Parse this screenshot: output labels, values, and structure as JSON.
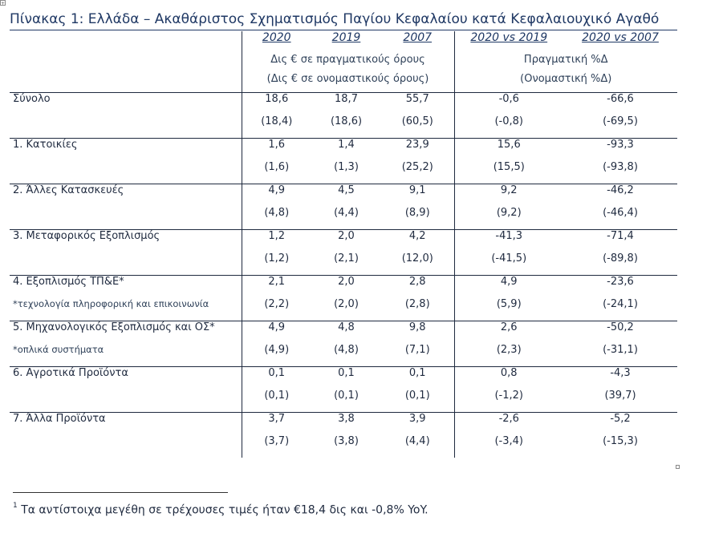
{
  "title": "Πίνακας 1: Ελλάδα – Ακαθάριστος Σχηματισμός Παγίου Κεφαλαίου κατά Κεφαλαιουχικό Αγαθό",
  "header": {
    "years": [
      "2020",
      "2019",
      "2007"
    ],
    "changes": [
      "2020 vs 2019",
      "2020 vs 2007"
    ],
    "units_real": "Δις € σε πραγματικούς όρους",
    "units_nominal": "(Δις € σε ονομαστικούς όρους)",
    "pct_real": "Πραγματική %Δ",
    "pct_nominal": "(Ονομαστική %Δ)"
  },
  "rows": [
    {
      "label": "Σύνολο",
      "note": "",
      "real": [
        "18,6",
        "18,7",
        "55,7",
        "-0,6",
        "-66,6"
      ],
      "nominal": [
        "(18,4)",
        "(18,6)",
        "(60,5)",
        "(-0,8)",
        "(-69,5)"
      ]
    },
    {
      "label": "1. Κατοικίες",
      "note": "",
      "real": [
        "1,6",
        "1,4",
        "23,9",
        "15,6",
        "-93,3"
      ],
      "nominal": [
        "(1,6)",
        "(1,3)",
        "(25,2)",
        "(15,5)",
        "(-93,8)"
      ]
    },
    {
      "label": "2. Άλλες Κατασκευές",
      "note": "",
      "real": [
        "4,9",
        "4,5",
        "9,1",
        "9,2",
        "-46,2"
      ],
      "nominal": [
        "(4,8)",
        "(4,4)",
        "(8,9)",
        "(9,2)",
        "(-46,4)"
      ]
    },
    {
      "label": "3. Μεταφορικός Εξοπλισμός",
      "note": "",
      "real": [
        "1,2",
        "2,0",
        "4,2",
        "-41,3",
        "-71,4"
      ],
      "nominal": [
        "(1,2)",
        "(2,1)",
        "(12,0)",
        "(-41,5)",
        "(-89,8)"
      ]
    },
    {
      "label": "4. Εξοπλισμός ΤΠ&Ε*",
      "note": "*τεχνολογία πληροφορική και επικοινωνία",
      "real": [
        "2,1",
        "2,0",
        "2,8",
        "4,9",
        "-23,6"
      ],
      "nominal": [
        "(2,2)",
        "(2,0)",
        "(2,8)",
        "(5,9)",
        "(-24,1)"
      ]
    },
    {
      "label": "5. Μηχανολογικός Εξοπλισμός και ΟΣ*",
      "note": "*οπλικά συστήματα",
      "real": [
        "4,9",
        "4,8",
        "9,8",
        "2,6",
        "-50,2"
      ],
      "nominal": [
        "(4,9)",
        "(4,8)",
        "(7,1)",
        "(2,3)",
        "(-31,1)"
      ]
    },
    {
      "label": "6. Αγροτικά Προϊόντα",
      "note": "",
      "real": [
        "0,1",
        "0,1",
        "0,1",
        "0,8",
        "-4,3"
      ],
      "nominal": [
        "(0,1)",
        "(0,1)",
        "(0,1)",
        "(-1,2)",
        "(39,7)"
      ]
    },
    {
      "label": "7. Άλλα Προϊόντα",
      "note": "",
      "real": [
        "3,7",
        "3,8",
        "3,9",
        "-2,6",
        "-5,2"
      ],
      "nominal": [
        "(3,7)",
        "(3,8)",
        "(4,4)",
        "(-3,4)",
        "(-15,3)"
      ]
    }
  ],
  "footnote": {
    "marker": "1",
    "text": "Τα αντίστοιχα μεγέθη σε τρέχουσες τιμές ήταν €18,4 δις και -0,8% YoY."
  }
}
